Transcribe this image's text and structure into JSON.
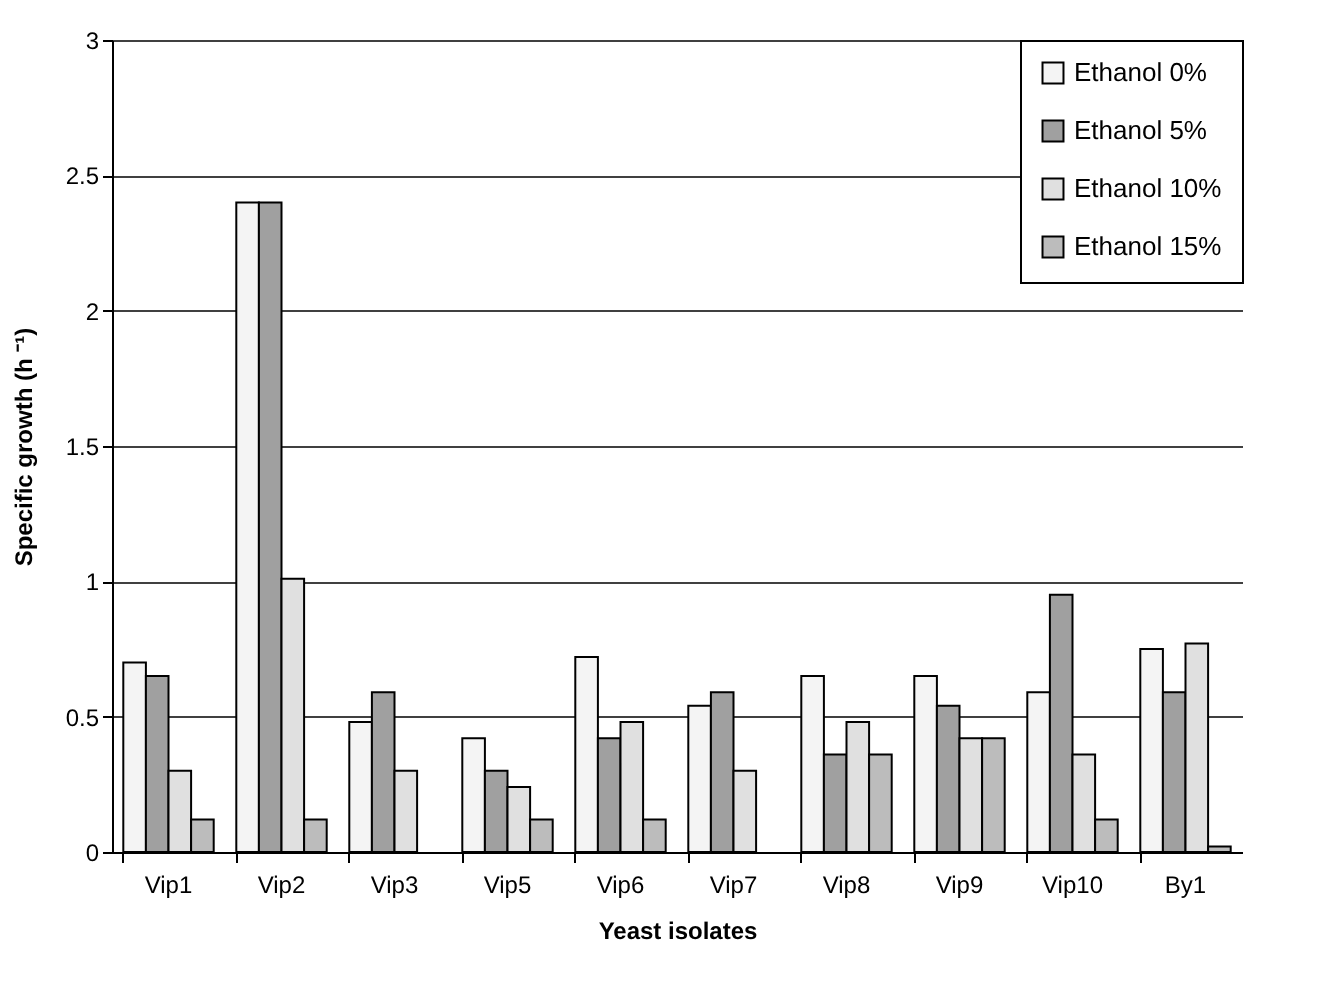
{
  "chart_data": {
    "type": "bar",
    "xlabel": "Yeast isolates",
    "ylabel": "Specific growth (h ⁻¹)",
    "categories": [
      "Vip1",
      "Vip2",
      "Vip3",
      "Vip5",
      "Vip6",
      "Vip7",
      "Vip8",
      "Vip9",
      "Vip10",
      "By1"
    ],
    "series": [
      {
        "name": "Ethanol 0%",
        "color": "#f4f4f4",
        "values": [
          0.7,
          2.4,
          0.48,
          0.42,
          0.72,
          0.54,
          0.65,
          0.65,
          0.59,
          0.75
        ]
      },
      {
        "name": "Ethanol 5%",
        "color": "#a0a0a0",
        "values": [
          0.65,
          2.4,
          0.59,
          0.3,
          0.42,
          0.59,
          0.36,
          0.54,
          0.95,
          0.59
        ]
      },
      {
        "name": "Ethanol 10%",
        "color": "#e0e0e0",
        "values": [
          0.3,
          1.01,
          0.3,
          0.24,
          0.48,
          0.3,
          0.48,
          0.42,
          0.36,
          0.77
        ]
      },
      {
        "name": "Ethanol 15%",
        "color": "#bcbcbc",
        "values": [
          0.12,
          0.12,
          null,
          0.12,
          0.12,
          null,
          0.36,
          0.42,
          0.12,
          0.02
        ]
      }
    ],
    "ylim": [
      0,
      3
    ],
    "yticks": [
      0,
      0.5,
      1,
      1.5,
      2,
      2.5,
      3
    ],
    "grid": "y",
    "legend": "top right"
  }
}
